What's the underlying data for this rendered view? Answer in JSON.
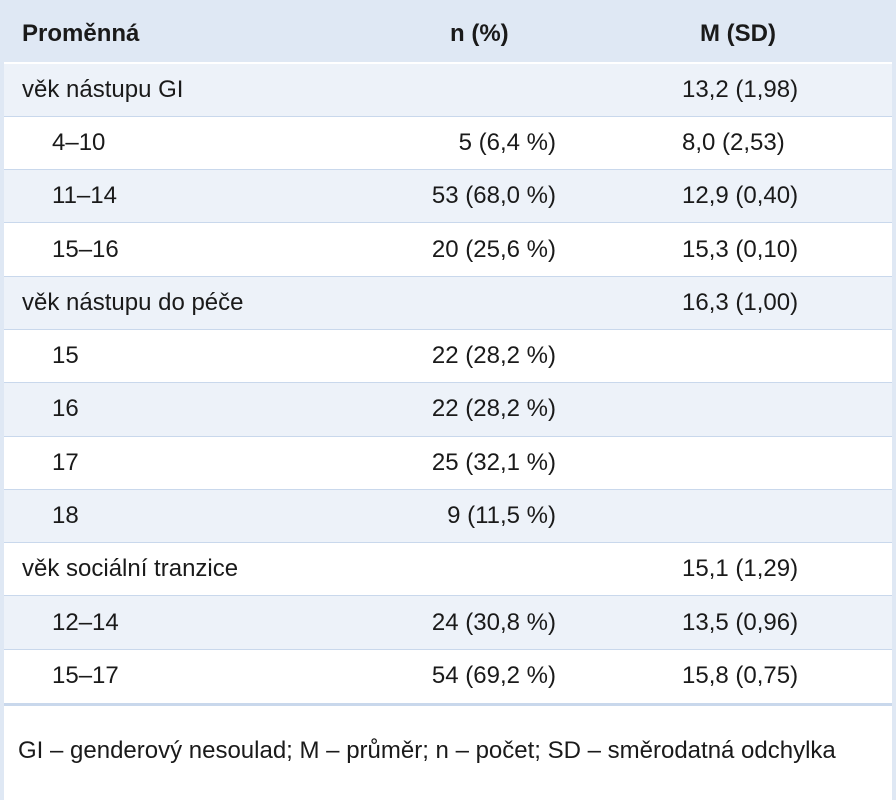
{
  "table": {
    "headers": [
      "Proměnná",
      "n (%)",
      "M (SD)"
    ],
    "rows": [
      {
        "label": "věk nástupu GI",
        "n": "",
        "m": "13,2 (1,98)",
        "level": 0
      },
      {
        "label": "4–10",
        "n": "5 (6,4 %)",
        "m": "8,0 (2,53)",
        "level": 1
      },
      {
        "label": "11–14",
        "n": "53 (68,0 %)",
        "m": "12,9 (0,40)",
        "level": 1
      },
      {
        "label": "15–16",
        "n": "20 (25,6 %)",
        "m": "15,3 (0,10)",
        "level": 1
      },
      {
        "label": "věk nástupu do péče",
        "n": "",
        "m": "16,3 (1,00)",
        "level": 0
      },
      {
        "label": "15",
        "n": "22 (28,2 %)",
        "m": "",
        "level": 1
      },
      {
        "label": "16",
        "n": "22 (28,2 %)",
        "m": "",
        "level": 1
      },
      {
        "label": "17",
        "n": "25 (32,1 %)",
        "m": "",
        "level": 1
      },
      {
        "label": "18",
        "n": "9 (11,5 %)",
        "m": "",
        "level": 1
      },
      {
        "label": "věk sociální tranzice",
        "n": "",
        "m": "15,1 (1,29)",
        "level": 0
      },
      {
        "label": "12–14",
        "n": "24 (30,8 %)",
        "m": "13,5 (0,96)",
        "level": 1
      },
      {
        "label": "15–17",
        "n": "54 (69,2 %)",
        "m": "15,8 (0,75)",
        "level": 1
      }
    ]
  },
  "footnote": "GI – genderový nesoulad; M – průměr; n – počet; SD – směrodatná odchylka",
  "colors": {
    "header_bg": "#dfe8f4",
    "stripe_bg": "#edf2f9",
    "rule": "#c9d8ec"
  }
}
